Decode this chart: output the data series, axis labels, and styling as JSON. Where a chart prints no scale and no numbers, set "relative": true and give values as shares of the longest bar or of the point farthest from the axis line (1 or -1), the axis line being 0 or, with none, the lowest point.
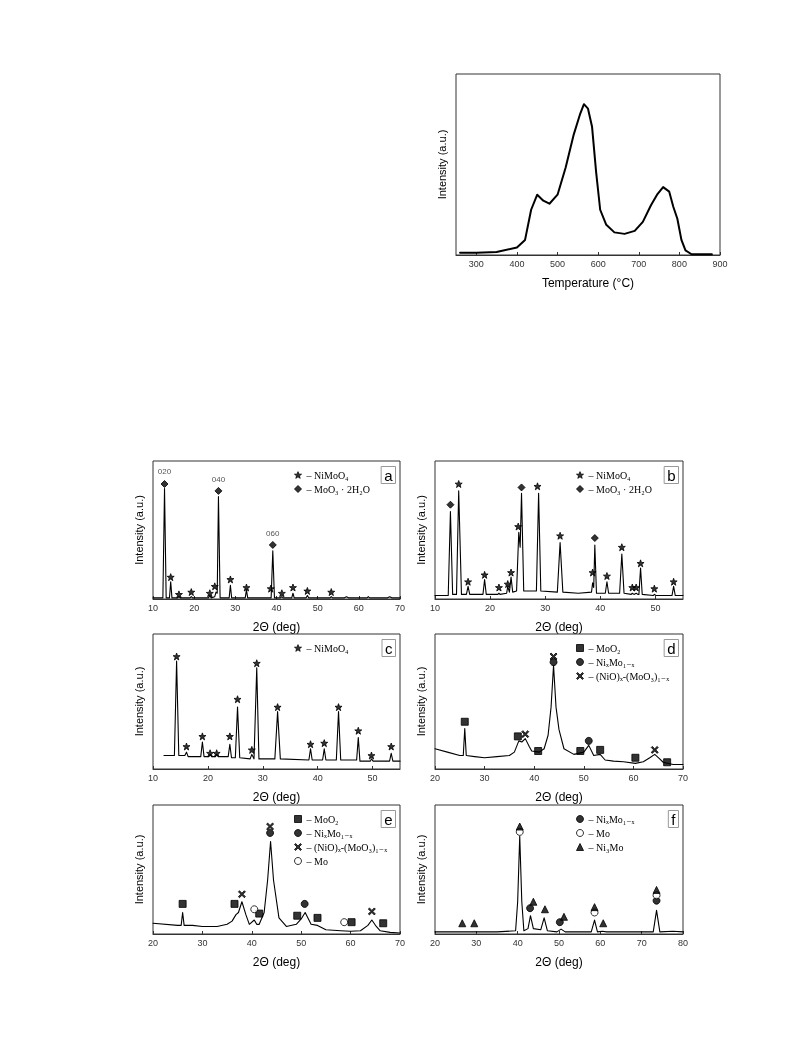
{
  "chart_data": [
    {
      "type": "line",
      "xlabel": "Temperature (°C)",
      "ylabel": "Intensity (a.u.)",
      "relative": true,
      "xlim": [
        250,
        900
      ],
      "xticks": [
        300,
        400,
        500,
        600,
        700,
        800,
        900
      ],
      "series": [
        {
          "type": "line",
          "marker": "none",
          "color": "#000000",
          "x": [
            260,
            300,
            350,
            400,
            420,
            435,
            450,
            465,
            480,
            500,
            520,
            540,
            555,
            565,
            575,
            585,
            595,
            605,
            620,
            640,
            665,
            690,
            710,
            730,
            745,
            760,
            775,
            785,
            795,
            805,
            815,
            830,
            860,
            880
          ],
          "values": [
            0.015,
            0.015,
            0.02,
            0.05,
            0.1,
            0.3,
            0.4,
            0.36,
            0.34,
            0.4,
            0.58,
            0.8,
            0.93,
            1.0,
            0.97,
            0.85,
            0.55,
            0.3,
            0.2,
            0.15,
            0.14,
            0.16,
            0.22,
            0.33,
            0.4,
            0.45,
            0.42,
            0.32,
            0.24,
            0.1,
            0.03,
            0.005,
            0.005,
            0.005
          ]
        }
      ]
    },
    {
      "type": "line",
      "xlabel": "2Θ (deg)",
      "ylabel": "Intensity (a.u.)",
      "relative": true,
      "xlim": [
        10,
        70
      ],
      "xticks": [
        10,
        20,
        30,
        40,
        50,
        60,
        70
      ],
      "legend": "top right",
      "annotations": [
        "a",
        {
          "text": "020",
          "x": 12.8,
          "y": 0.96
        },
        {
          "text": "040",
          "x": 25.9,
          "y": 0.89
        },
        {
          "text": "060",
          "x": 39.1,
          "y": 0.42
        }
      ],
      "series": [
        {
          "type": "line",
          "marker": "none",
          "color": "#000000",
          "x": [
            10,
            12.4,
            12.8,
            13.2,
            14,
            14.3,
            14.6,
            16,
            16.3,
            16.6,
            19,
            19.3,
            19.6,
            23.5,
            23.8,
            24.1,
            25,
            25.3,
            25.6,
            25.9,
            26.3,
            28.5,
            28.8,
            29.1,
            32.4,
            32.7,
            33,
            38.7,
            39.1,
            39.5,
            41,
            41.3,
            41.6,
            43.7,
            44,
            44.3,
            47.2,
            47.5,
            47.8,
            53,
            53.3,
            53.6,
            56.5,
            57,
            57.5,
            62,
            62.3,
            62.6,
            67,
            67.5,
            68,
            70
          ],
          "values": [
            0.01,
            0.01,
            0.96,
            0.01,
            0.01,
            0.15,
            0.01,
            0.01,
            0.02,
            0.01,
            0.01,
            0.02,
            0.01,
            0.01,
            0.03,
            0.01,
            0.02,
            0.06,
            0.05,
            0.89,
            0.01,
            0.01,
            0.12,
            0.01,
            0.01,
            0.08,
            0.01,
            0.01,
            0.42,
            0.01,
            0.01,
            0.02,
            0.01,
            0.01,
            0.05,
            0.01,
            0.01,
            0.03,
            0.01,
            0.01,
            0.02,
            0.01,
            0.01,
            0.02,
            0.01,
            0.01,
            0.02,
            0.01,
            0.01,
            0.02,
            0.01,
            0.01
          ]
        },
        {
          "name": "– NiMoO₄",
          "type": "scatter",
          "marker": "star",
          "color": "#000000",
          "x": [
            14.3,
            16.3,
            19.3,
            23.8,
            25,
            28.8,
            32.7,
            38.6,
            41.3,
            44,
            47.5,
            53.3
          ],
          "values": [
            0.19,
            0.04,
            0.06,
            0.05,
            0.11,
            0.17,
            0.1,
            0.09,
            0.05,
            0.1,
            0.07,
            0.06
          ]
        },
        {
          "name": "– MoO₃ · 2H₂O",
          "type": "scatter",
          "marker": "diamond",
          "color": "#000000",
          "x": [
            12.8,
            25.9,
            39.1
          ],
          "values": [
            1.0,
            0.94,
            0.47
          ]
        }
      ]
    },
    {
      "type": "line",
      "xlabel": "2Θ (deg)",
      "ylabel": "Intensity (a.u.)",
      "relative": true,
      "xlim": [
        10,
        55
      ],
      "xticks": [
        10,
        20,
        30,
        40,
        50
      ],
      "legend": "top right",
      "annotations": [
        "b"
      ],
      "series": [
        {
          "type": "line",
          "marker": "none",
          "color": "#000000",
          "x": [
            10,
            12.4,
            12.8,
            13.2,
            13.9,
            14.3,
            14.8,
            15.7,
            16,
            16.3,
            18.7,
            19,
            19.3,
            21.4,
            21.6,
            21.8,
            23,
            23.2,
            23.5,
            23.8,
            24.1,
            24.8,
            25.2,
            25.45,
            25.7,
            26.1,
            27,
            28.4,
            28.8,
            29.2,
            32.2,
            32.7,
            33.2,
            36,
            38.4,
            38.6,
            38.8,
            39,
            39.3,
            40.9,
            41.2,
            41.5,
            43.5,
            43.9,
            44.3,
            45.6,
            45.8,
            46.1,
            46.5,
            46.8,
            47,
            47.3,
            47.6,
            49.6,
            49.8,
            50.1,
            53,
            53.3,
            53.6,
            55
          ],
          "values": [
            0.03,
            0.03,
            0.76,
            0.04,
            0.04,
            0.94,
            0.04,
            0.04,
            0.11,
            0.04,
            0.04,
            0.17,
            0.04,
            0.04,
            0.05,
            0.04,
            0.05,
            0.11,
            0.06,
            0.19,
            0.06,
            0.07,
            0.58,
            0.45,
            0.92,
            0.07,
            0.07,
            0.07,
            0.92,
            0.07,
            0.06,
            0.49,
            0.06,
            0.05,
            0.06,
            0.14,
            0.1,
            0.47,
            0.05,
            0.05,
            0.15,
            0.05,
            0.05,
            0.39,
            0.05,
            0.04,
            0.05,
            0.04,
            0.05,
            0.04,
            0.04,
            0.27,
            0.04,
            0.03,
            0.04,
            0.03,
            0.03,
            0.11,
            0.03,
            0.03
          ]
        },
        {
          "name": "– NiMoO₄",
          "type": "scatter",
          "marker": "star",
          "color": "#000000",
          "x": [
            14.3,
            16,
            19,
            21.6,
            23.2,
            23.8,
            25.1,
            28.6,
            32.7,
            38.6,
            41.2,
            43.9,
            45.8,
            46.5,
            47.3,
            49.8,
            53.3
          ],
          "values": [
            1.0,
            0.15,
            0.21,
            0.1,
            0.13,
            0.23,
            0.63,
            0.98,
            0.55,
            0.23,
            0.2,
            0.45,
            0.1,
            0.1,
            0.31,
            0.09,
            0.15
          ]
        },
        {
          "name": "– MoO₃ · 2H₂O",
          "type": "scatter",
          "marker": "diamond",
          "color": "#000000",
          "x": [
            12.8,
            25.7,
            39
          ],
          "values": [
            0.82,
            0.97,
            0.53
          ]
        }
      ]
    },
    {
      "type": "line",
      "xlabel": "2Θ (deg)",
      "ylabel": "Intensity (a.u.)",
      "relative": true,
      "xlim": [
        10,
        55
      ],
      "xticks": [
        10,
        20,
        30,
        40,
        50
      ],
      "legend": "top right",
      "annotations": [
        "c"
      ],
      "series": [
        {
          "type": "line",
          "marker": "none",
          "color": "#000000",
          "x": [
            12,
            13.9,
            14.3,
            14.7,
            15.8,
            16.1,
            16.4,
            18.7,
            19,
            19.3,
            20.2,
            20.4,
            20.7,
            21.4,
            21.6,
            21.9,
            23.7,
            24,
            24.3,
            25,
            25.4,
            25.8,
            27.7,
            28,
            28.4,
            28.9,
            29.3,
            32.2,
            32.7,
            33.2,
            38.4,
            38.7,
            39,
            40.9,
            41.2,
            41.5,
            43.4,
            43.8,
            44.2,
            47.1,
            47.4,
            47.7,
            49.6,
            49.8,
            50.1,
            53.1,
            53.4,
            53.7,
            55
          ],
          "values": [
            0.12,
            0.12,
            0.96,
            0.12,
            0.12,
            0.15,
            0.11,
            0.11,
            0.24,
            0.11,
            0.11,
            0.13,
            0.11,
            0.11,
            0.13,
            0.11,
            0.11,
            0.22,
            0.1,
            0.1,
            0.55,
            0.1,
            0.09,
            0.13,
            0.09,
            0.9,
            0.09,
            0.09,
            0.51,
            0.09,
            0.08,
            0.18,
            0.08,
            0.08,
            0.18,
            0.08,
            0.08,
            0.51,
            0.08,
            0.08,
            0.28,
            0.07,
            0.07,
            0.09,
            0.07,
            0.07,
            0.14,
            0.07,
            0.07
          ]
        },
        {
          "name": "– NiMoO₄",
          "type": "scatter",
          "marker": "star",
          "color": "#000000",
          "x": [
            14.3,
            16.1,
            19,
            20.4,
            21.6,
            24,
            25.4,
            28,
            28.9,
            32.7,
            38.7,
            41.2,
            43.8,
            47.4,
            49.8,
            53.4
          ],
          "values": [
            1.0,
            0.2,
            0.29,
            0.14,
            0.14,
            0.29,
            0.62,
            0.17,
            0.94,
            0.55,
            0.22,
            0.23,
            0.55,
            0.34,
            0.12,
            0.2
          ]
        }
      ]
    },
    {
      "type": "line",
      "xlabel": "2Θ (deg)",
      "ylabel": "Intensity (a.u.)",
      "relative": true,
      "xlim": [
        20,
        70
      ],
      "xticks": [
        20,
        30,
        40,
        50,
        60,
        70
      ],
      "legend": "top right",
      "annotations": [
        "d"
      ],
      "series": [
        {
          "type": "line",
          "marker": "none",
          "color": "#000000",
          "x": [
            20,
            22.5,
            25,
            25.7,
            26,
            26.3,
            28,
            30,
            32.5,
            35,
            36,
            36.9,
            37.5,
            38.2,
            39,
            39.5,
            41,
            42,
            42.8,
            43.4,
            43.9,
            44.4,
            45,
            46,
            48,
            50,
            51,
            52,
            53.3,
            54.3,
            56,
            58,
            60.4,
            62,
            63.3,
            64.3,
            65.3,
            66,
            68,
            70
          ],
          "values": [
            0.18,
            0.15,
            0.12,
            0.12,
            0.36,
            0.12,
            0.11,
            0.1,
            0.11,
            0.12,
            0.15,
            0.25,
            0.24,
            0.27,
            0.2,
            0.16,
            0.15,
            0.18,
            0.3,
            0.55,
            0.92,
            0.55,
            0.35,
            0.18,
            0.13,
            0.15,
            0.21,
            0.12,
            0.13,
            0.08,
            0.07,
            0.065,
            0.05,
            0.065,
            0.1,
            0.13,
            0.09,
            0.06,
            0.04,
            0.04
          ]
        },
        {
          "name": "– MoO₂",
          "type": "scatter",
          "marker": "square",
          "color": "#000000",
          "x": [
            26,
            36.7,
            40.8,
            49.3,
            53.3,
            60.4,
            66.8
          ],
          "values": [
            0.42,
            0.29,
            0.16,
            0.16,
            0.17,
            0.1,
            0.06
          ]
        },
        {
          "name": "– NiₓMo₁₋ₓ",
          "type": "scatter",
          "marker": "circle",
          "color": "#000000",
          "x": [
            43.9,
            51
          ],
          "values": [
            0.95,
            0.25
          ]
        },
        {
          "name": "– (NiO)ₓ-(MoO₃)₁₋ₓ",
          "type": "scatter",
          "marker": "cross",
          "color": "#000000",
          "x": [
            38.2,
            43.9,
            64.3
          ],
          "values": [
            0.31,
            1.0,
            0.17
          ]
        }
      ]
    },
    {
      "type": "line",
      "xlabel": "2Θ (deg)",
      "ylabel": "Intensity (a.u.)",
      "relative": true,
      "xlim": [
        20,
        70
      ],
      "xticks": [
        20,
        30,
        40,
        50,
        60,
        70
      ],
      "legend": "top right",
      "annotations": [
        "e"
      ],
      "series": [
        {
          "type": "line",
          "marker": "none",
          "color": "#000000",
          "x": [
            20,
            25,
            25.7,
            26,
            26.3,
            28,
            30,
            33,
            35,
            36,
            36.8,
            37.3,
            38,
            38.8,
            39.5,
            40.5,
            41,
            41.5,
            42.5,
            43.2,
            43.8,
            44.4,
            45.5,
            47,
            49,
            50,
            50.8,
            52,
            53.3,
            55,
            58,
            60,
            62,
            63.5,
            64.3,
            65.2,
            66,
            68,
            70
          ],
          "values": [
            0.1,
            0.08,
            0.08,
            0.2,
            0.08,
            0.08,
            0.07,
            0.07,
            0.09,
            0.12,
            0.18,
            0.2,
            0.3,
            0.18,
            0.09,
            0.13,
            0.09,
            0.09,
            0.2,
            0.5,
            0.86,
            0.5,
            0.15,
            0.07,
            0.09,
            0.14,
            0.2,
            0.09,
            0.08,
            0.04,
            0.03,
            0.025,
            0.03,
            0.08,
            0.13,
            0.07,
            0.03,
            0.015,
            0.01
          ]
        },
        {
          "name": "– MoO₂",
          "type": "scatter",
          "marker": "square",
          "color": "#000000",
          "x": [
            26,
            36.5,
            41.5,
            49.2,
            53.3,
            60.2,
            66.6
          ],
          "values": [
            0.28,
            0.28,
            0.19,
            0.17,
            0.15,
            0.11,
            0.1
          ]
        },
        {
          "name": "– NiₓMo₁₋ₓ",
          "type": "scatter",
          "marker": "circle",
          "color": "#000000",
          "x": [
            43.7,
            50.7
          ],
          "values": [
            0.94,
            0.28
          ]
        },
        {
          "name": "– (NiO)ₓ-(MoO₃)₁₋ₓ",
          "type": "scatter",
          "marker": "cross",
          "color": "#000000",
          "x": [
            38,
            43.7,
            64.3
          ],
          "values": [
            0.37,
            1.0,
            0.21
          ]
        },
        {
          "name": "– Mo",
          "type": "scatter",
          "marker": "circle",
          "color": "#ffffff",
          "x": [
            40.5,
            58.7
          ],
          "values": [
            0.23,
            0.11
          ]
        }
      ]
    },
    {
      "type": "line",
      "xlabel": "2Θ (deg)",
      "ylabel": "Intensity (a.u.)",
      "relative": true,
      "xlim": [
        20,
        80
      ],
      "xticks": [
        20,
        30,
        40,
        50,
        60,
        70,
        80
      ],
      "legend": "top right",
      "annotations": [
        "f"
      ],
      "series": [
        {
          "type": "line",
          "marker": "none",
          "color": "#000000",
          "x": [
            20,
            26.6,
            29.5,
            35,
            39.5,
            40,
            40.5,
            41,
            41.5,
            42.5,
            43.1,
            43.8,
            45.6,
            46.4,
            47.2,
            49.5,
            50.5,
            51.5,
            57.8,
            58.6,
            59.3,
            60.5,
            61.5,
            65,
            72.8,
            73.6,
            74.4,
            77.5,
            80
          ],
          "values": [
            0.02,
            0.02,
            0.02,
            0.02,
            0.03,
            0.3,
            0.91,
            0.3,
            0.03,
            0.05,
            0.17,
            0.05,
            0.04,
            0.15,
            0.03,
            0.02,
            0.045,
            0.02,
            0.02,
            0.13,
            0.02,
            0.025,
            0.02,
            0.02,
            0.02,
            0.22,
            0.02,
            0.025,
            0.02
          ]
        },
        {
          "name": "– NiₓMo₁₋ₓ",
          "type": "scatter",
          "marker": "circle",
          "color": "#000000",
          "x": [
            43,
            50.2,
            73.6
          ],
          "values": [
            0.24,
            0.11,
            0.31
          ]
        },
        {
          "name": "– Mo",
          "type": "scatter",
          "marker": "circle",
          "color": "#ffffff",
          "x": [
            40.5,
            58.6,
            73.6
          ],
          "values": [
            0.95,
            0.2,
            0.36
          ]
        },
        {
          "name": "– Ni₃Mo",
          "type": "scatter",
          "marker": "triangle",
          "color": "#000000",
          "x": [
            26.6,
            29.5,
            40.5,
            43.8,
            46.6,
            51.2,
            58.6,
            60.7,
            73.6
          ],
          "values": [
            0.1,
            0.1,
            1.0,
            0.3,
            0.23,
            0.16,
            0.25,
            0.1,
            0.41
          ]
        }
      ]
    }
  ]
}
